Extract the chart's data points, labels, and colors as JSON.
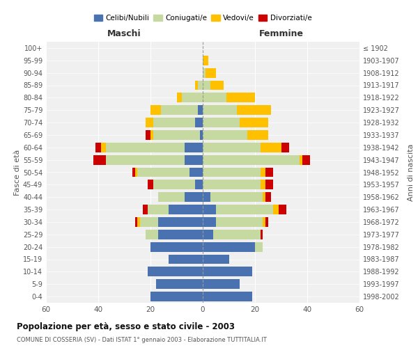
{
  "age_groups": [
    "0-4",
    "5-9",
    "10-14",
    "15-19",
    "20-24",
    "25-29",
    "30-34",
    "35-39",
    "40-44",
    "45-49",
    "50-54",
    "55-59",
    "60-64",
    "65-69",
    "70-74",
    "75-79",
    "80-84",
    "85-89",
    "90-94",
    "95-99",
    "100+"
  ],
  "birth_years": [
    "1998-2002",
    "1993-1997",
    "1988-1992",
    "1983-1987",
    "1978-1982",
    "1973-1977",
    "1968-1972",
    "1963-1967",
    "1958-1962",
    "1953-1957",
    "1948-1952",
    "1943-1947",
    "1938-1942",
    "1933-1937",
    "1928-1932",
    "1923-1927",
    "1918-1922",
    "1913-1917",
    "1908-1912",
    "1903-1907",
    "≤ 1902"
  ],
  "male": {
    "celibi": [
      20,
      18,
      21,
      13,
      20,
      17,
      17,
      13,
      7,
      3,
      5,
      7,
      7,
      1,
      3,
      2,
      0,
      0,
      0,
      0,
      0
    ],
    "coniugati": [
      0,
      0,
      0,
      0,
      0,
      5,
      7,
      8,
      10,
      16,
      20,
      30,
      30,
      18,
      16,
      14,
      8,
      2,
      0,
      0,
      0
    ],
    "vedovi": [
      0,
      0,
      0,
      0,
      0,
      0,
      1,
      0,
      0,
      0,
      1,
      0,
      2,
      1,
      3,
      4,
      2,
      1,
      0,
      0,
      0
    ],
    "divorziati": [
      0,
      0,
      0,
      0,
      0,
      0,
      1,
      2,
      0,
      2,
      1,
      5,
      2,
      2,
      0,
      0,
      0,
      0,
      0,
      0,
      0
    ]
  },
  "female": {
    "celibi": [
      19,
      14,
      19,
      10,
      20,
      4,
      5,
      5,
      3,
      0,
      0,
      0,
      0,
      0,
      0,
      0,
      0,
      0,
      0,
      0,
      0
    ],
    "coniugati": [
      0,
      0,
      0,
      0,
      3,
      18,
      18,
      22,
      20,
      22,
      22,
      37,
      22,
      17,
      14,
      13,
      9,
      3,
      1,
      0,
      0
    ],
    "vedovi": [
      0,
      0,
      0,
      0,
      0,
      0,
      1,
      2,
      1,
      2,
      2,
      1,
      8,
      8,
      11,
      13,
      11,
      5,
      4,
      2,
      0
    ],
    "divorziati": [
      0,
      0,
      0,
      0,
      0,
      1,
      1,
      3,
      2,
      3,
      3,
      3,
      3,
      0,
      0,
      0,
      0,
      0,
      0,
      0,
      0
    ]
  },
  "colors": {
    "celibi": "#4a72b0",
    "coniugati": "#c6d9a0",
    "vedovi": "#ffc000",
    "divorziati": "#cc0000"
  },
  "title": "Popolazione per età, sesso e stato civile - 2003",
  "subtitle": "COMUNE DI COSSERIA (SV) - Dati ISTAT 1° gennaio 2003 - Elaborazione TUTTITALIA.IT",
  "ylabel_left": "Fasce di età",
  "ylabel_right": "Anni di nascita",
  "xlabel_left": "Maschi",
  "xlabel_right": "Femmine",
  "xlim": 60,
  "bg_color": "#ffffff",
  "plot_bg": "#f0f0f0",
  "grid_color": "#ffffff",
  "legend_labels": [
    "Celibi/Nubili",
    "Coniugati/e",
    "Vedovi/e",
    "Divorziati/e"
  ]
}
